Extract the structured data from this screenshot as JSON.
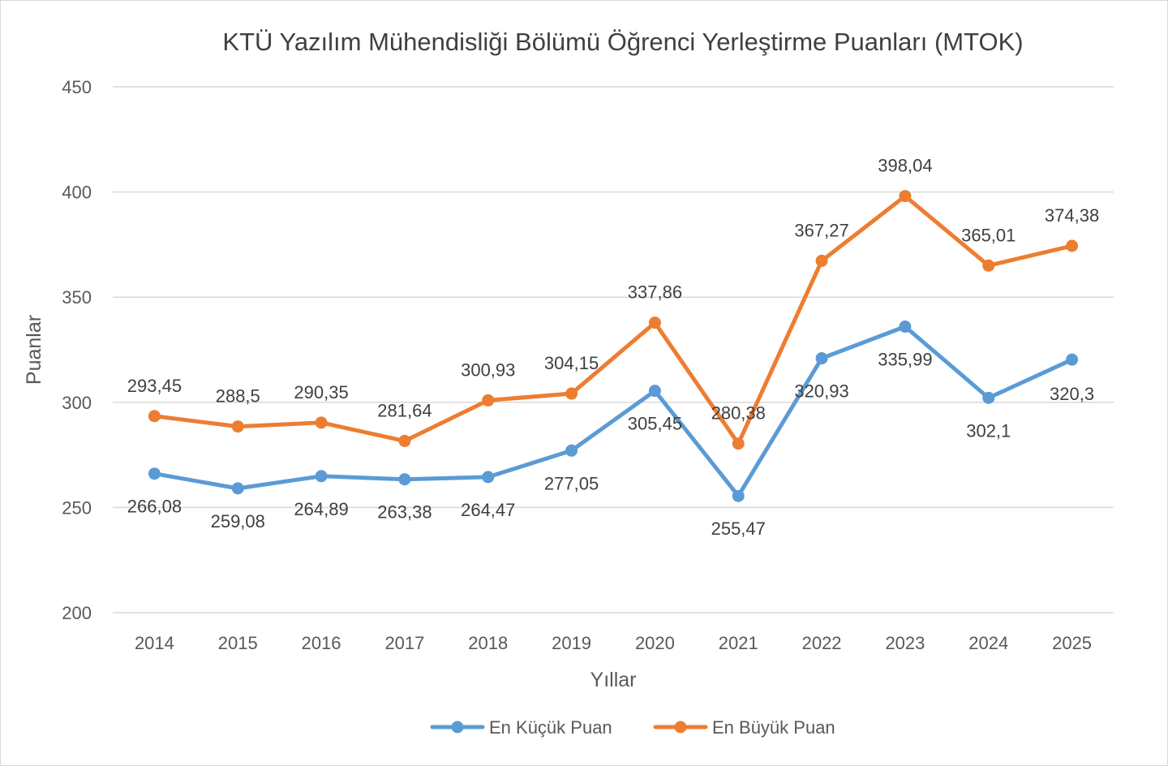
{
  "chart_data": {
    "type": "line",
    "title": "KTÜ Yazılım Mühendisliği Bölümü Öğrenci Yerleştirme Puanları (MTOK)",
    "xlabel": "Yıllar",
    "ylabel": "Puanlar",
    "ylim": [
      200,
      450
    ],
    "yticks": [
      200,
      250,
      300,
      350,
      400,
      450
    ],
    "categories": [
      "2014",
      "2015",
      "2016",
      "2017",
      "2018",
      "2019",
      "2020",
      "2021",
      "2022",
      "2023",
      "2024",
      "2025"
    ],
    "grid": true,
    "legend_position": "bottom",
    "series": [
      {
        "name": "En Küçük Puan",
        "color": "#5B9BD5",
        "values": [
          266.08,
          259.08,
          264.89,
          263.38,
          264.47,
          277.05,
          305.45,
          255.47,
          320.93,
          335.99,
          302.1,
          320.3
        ],
        "labels": [
          "266,08",
          "259,08",
          "264,89",
          "263,38",
          "264,47",
          "277,05",
          "305,45",
          "255,47",
          "320,93",
          "335,99",
          "302,1",
          "320,3"
        ]
      },
      {
        "name": "En Büyük Puan",
        "color": "#ED7D31",
        "values": [
          293.45,
          288.5,
          290.35,
          281.64,
          300.93,
          304.15,
          337.86,
          280.38,
          367.27,
          398.04,
          365.01,
          374.38
        ],
        "labels": [
          "293,45",
          "288,5",
          "290,35",
          "281,64",
          "300,93",
          "304,15",
          "337,86",
          "280,38",
          "367,27",
          "398,04",
          "365,01",
          "374,38"
        ]
      }
    ]
  }
}
